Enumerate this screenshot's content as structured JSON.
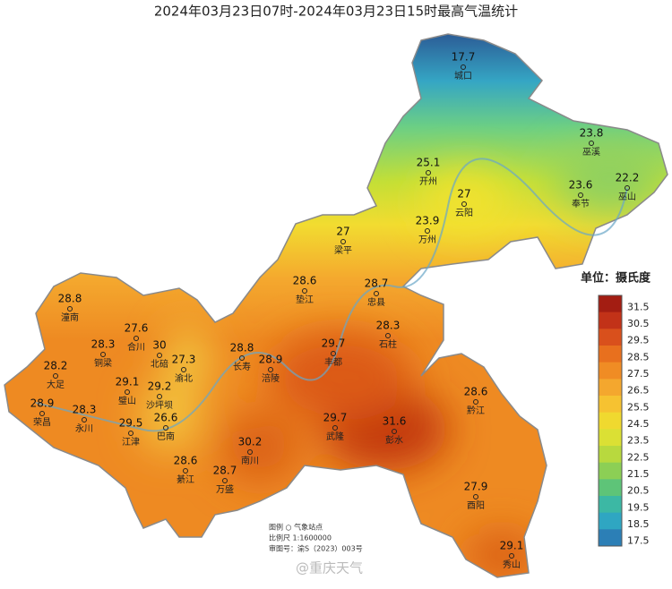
{
  "title": "2024年03月23日07时-2024年03月23日15时最高气温统计",
  "stations": [
    {
      "name": "城口",
      "value": 17.7
    },
    {
      "name": "巫溪",
      "value": 23.8
    },
    {
      "name": "开州",
      "value": 25.1
    },
    {
      "name": "云阳",
      "value": 27
    },
    {
      "name": "奉节",
      "value": 23.6
    },
    {
      "name": "巫山",
      "value": 22.2
    },
    {
      "name": "万州",
      "value": 23.9
    },
    {
      "name": "梁平",
      "value": 27
    },
    {
      "name": "垫江",
      "value": 28.6
    },
    {
      "name": "忠县",
      "value": 28.7
    },
    {
      "name": "石柱",
      "value": 28.3
    },
    {
      "name": "潼南",
      "value": 28.8
    },
    {
      "name": "合川",
      "value": 27.6
    },
    {
      "name": "北碚",
      "value": 30
    },
    {
      "name": "渝北",
      "value": 27.3
    },
    {
      "name": "长寿",
      "value": 28.8
    },
    {
      "name": "涪陵",
      "value": 28.9
    },
    {
      "name": "丰都",
      "value": 29.7
    },
    {
      "name": "铜梁",
      "value": 28.3
    },
    {
      "name": "大足",
      "value": 28.2
    },
    {
      "name": "璧山",
      "value": 29.1
    },
    {
      "name": "沙坪坝",
      "value": 29.2
    },
    {
      "name": "荣昌",
      "value": 28.9
    },
    {
      "name": "永川",
      "value": 28.3
    },
    {
      "name": "巴南",
      "value": 26.6
    },
    {
      "name": "江津",
      "value": 29.5
    },
    {
      "name": "武隆",
      "value": 29.7
    },
    {
      "name": "彭水",
      "value": 31.6
    },
    {
      "name": "黔江",
      "value": 28.6
    },
    {
      "name": "南川",
      "value": 30.2
    },
    {
      "name": "綦江",
      "value": 28.6
    },
    {
      "name": "万盛",
      "value": 28.7
    },
    {
      "name": "酉阳",
      "value": 27.9
    },
    {
      "name": "秀山",
      "value": 29.1
    }
  ],
  "legend": {
    "title": "单位：摄氏度",
    "labels": [
      31.5,
      30.5,
      29.5,
      28.5,
      27.5,
      26.5,
      25.5,
      24.5,
      23.5,
      22.5,
      21.5,
      20.5,
      19.5,
      18.5,
      17.5
    ],
    "colors": [
      "#a31d12",
      "#c23218",
      "#d9501c",
      "#e8701e",
      "#f08c24",
      "#f4a72e",
      "#f6c231",
      "#f0d92f",
      "#dbe034",
      "#b8d93e",
      "#8ccf55",
      "#5ec478",
      "#3cb8a4",
      "#2fa6c2",
      "#2c7fb6"
    ]
  },
  "notes": {
    "legend": "图例  ○ 气象站点",
    "scale": "比例尺  1:1600000",
    "approval": "审图号：渝S（2023）003号"
  },
  "watermark": "@重庆天气"
}
